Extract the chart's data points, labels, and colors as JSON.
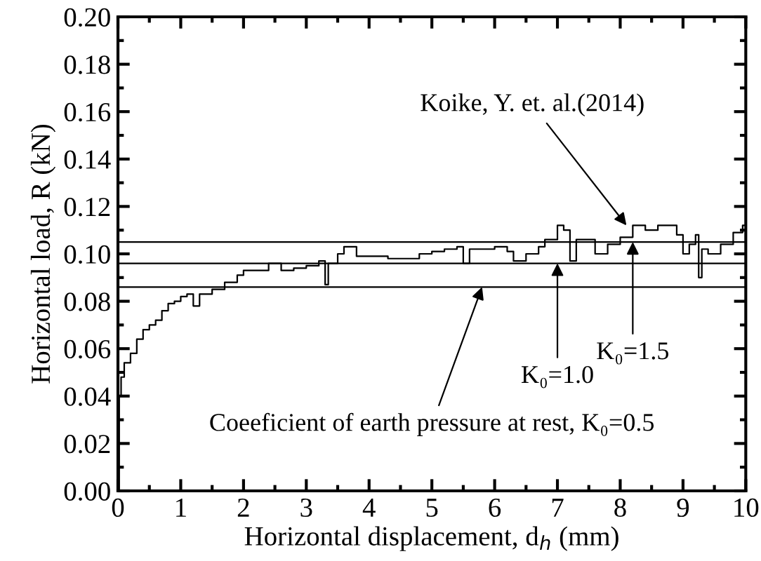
{
  "chart_data": {
    "type": "step",
    "xlabel": "Horizontal displacement, d$_{h}$ (mm)",
    "ylabel": "Horizontal load, R (kN)",
    "xlim": [
      0,
      10
    ],
    "xticks": [
      0,
      1,
      2,
      3,
      4,
      5,
      6,
      7,
      8,
      9,
      10
    ],
    "ylim": [
      0,
      0.2
    ],
    "yticks": [
      {
        "value": 0,
        "label": "0.00"
      },
      {
        "value": 0.02,
        "label": "0.02"
      },
      {
        "value": 0.04,
        "label": "0.04"
      },
      {
        "value": 0.06,
        "label": "0.06"
      },
      {
        "value": 0.08,
        "label": "0.08"
      },
      {
        "value": 0.1,
        "label": "0.10"
      },
      {
        "value": 0.12,
        "label": "0.12"
      },
      {
        "value": 0.14,
        "label": "0.14"
      },
      {
        "value": 0.16,
        "label": "0.16"
      },
      {
        "value": 0.18,
        "label": "0.18"
      },
      {
        "value": 0.2,
        "label": "0.20"
      }
    ],
    "grid": false,
    "legend": false,
    "marker": "none",
    "line_style": "solid",
    "series": [
      {
        "color": "#000000",
        "x": [
          0,
          0.02,
          0.05,
          0.1,
          0.2,
          0.3,
          0.4,
          0.5,
          0.6,
          0.7,
          0.8,
          0.9,
          1.0,
          1.1,
          1.2,
          1.3,
          1.5,
          1.7,
          1.9,
          2.0,
          2.2,
          2.4,
          2.6,
          2.8,
          3.0,
          3.2,
          3.3,
          3.35,
          3.5,
          3.6,
          3.8,
          4.0,
          4.3,
          4.5,
          4.8,
          5.0,
          5.2,
          5.4,
          5.5,
          5.6,
          6.0,
          6.2,
          6.3,
          6.5,
          6.7,
          6.8,
          7.0,
          7.1,
          7.2,
          7.3,
          7.5,
          7.6,
          7.8,
          8.0,
          8.2,
          8.4,
          8.6,
          8.8,
          8.9,
          9.0,
          9.1,
          9.2,
          9.25,
          9.3,
          9.4,
          9.6,
          9.8,
          9.95,
          10
        ],
        "values": [
          0,
          0.04,
          0.048,
          0.054,
          0.058,
          0.064,
          0.068,
          0.07,
          0.072,
          0.076,
          0.079,
          0.08,
          0.082,
          0.083,
          0.078,
          0.083,
          0.085,
          0.088,
          0.091,
          0.093,
          0.093,
          0.096,
          0.093,
          0.094,
          0.095,
          0.097,
          0.087,
          0.096,
          0.1,
          0.103,
          0.099,
          0.099,
          0.098,
          0.098,
          0.1,
          0.101,
          0.102,
          0.103,
          0.096,
          0.102,
          0.103,
          0.101,
          0.097,
          0.1,
          0.103,
          0.106,
          0.112,
          0.11,
          0.097,
          0.106,
          0.106,
          0.1,
          0.104,
          0.107,
          0.112,
          0.11,
          0.112,
          0.112,
          0.108,
          0.1,
          0.104,
          0.108,
          0.09,
          0.102,
          0.1,
          0.104,
          0.109,
          0.112,
          0.113
        ]
      }
    ],
    "ref_lines": [
      {
        "axis": "y",
        "value": 0.105,
        "color": "#000000"
      },
      {
        "axis": "y",
        "value": 0.096,
        "color": "#000000"
      },
      {
        "axis": "y",
        "value": 0.086,
        "color": "#000000"
      }
    ],
    "annotations": [
      {
        "text": "Koike, Y. et. al.(2014)",
        "x": 8.1,
        "y": 0.112
      },
      {
        "text": "K₀=1.0",
        "x": 7.0,
        "y": 0.096
      },
      {
        "text": "K₀=1.5",
        "x": 8.2,
        "y": 0.105
      },
      {
        "text": "Coeeficient of earth pressure at rest, K₀=0.5",
        "x": 5.8,
        "y": 0.086
      }
    ]
  }
}
